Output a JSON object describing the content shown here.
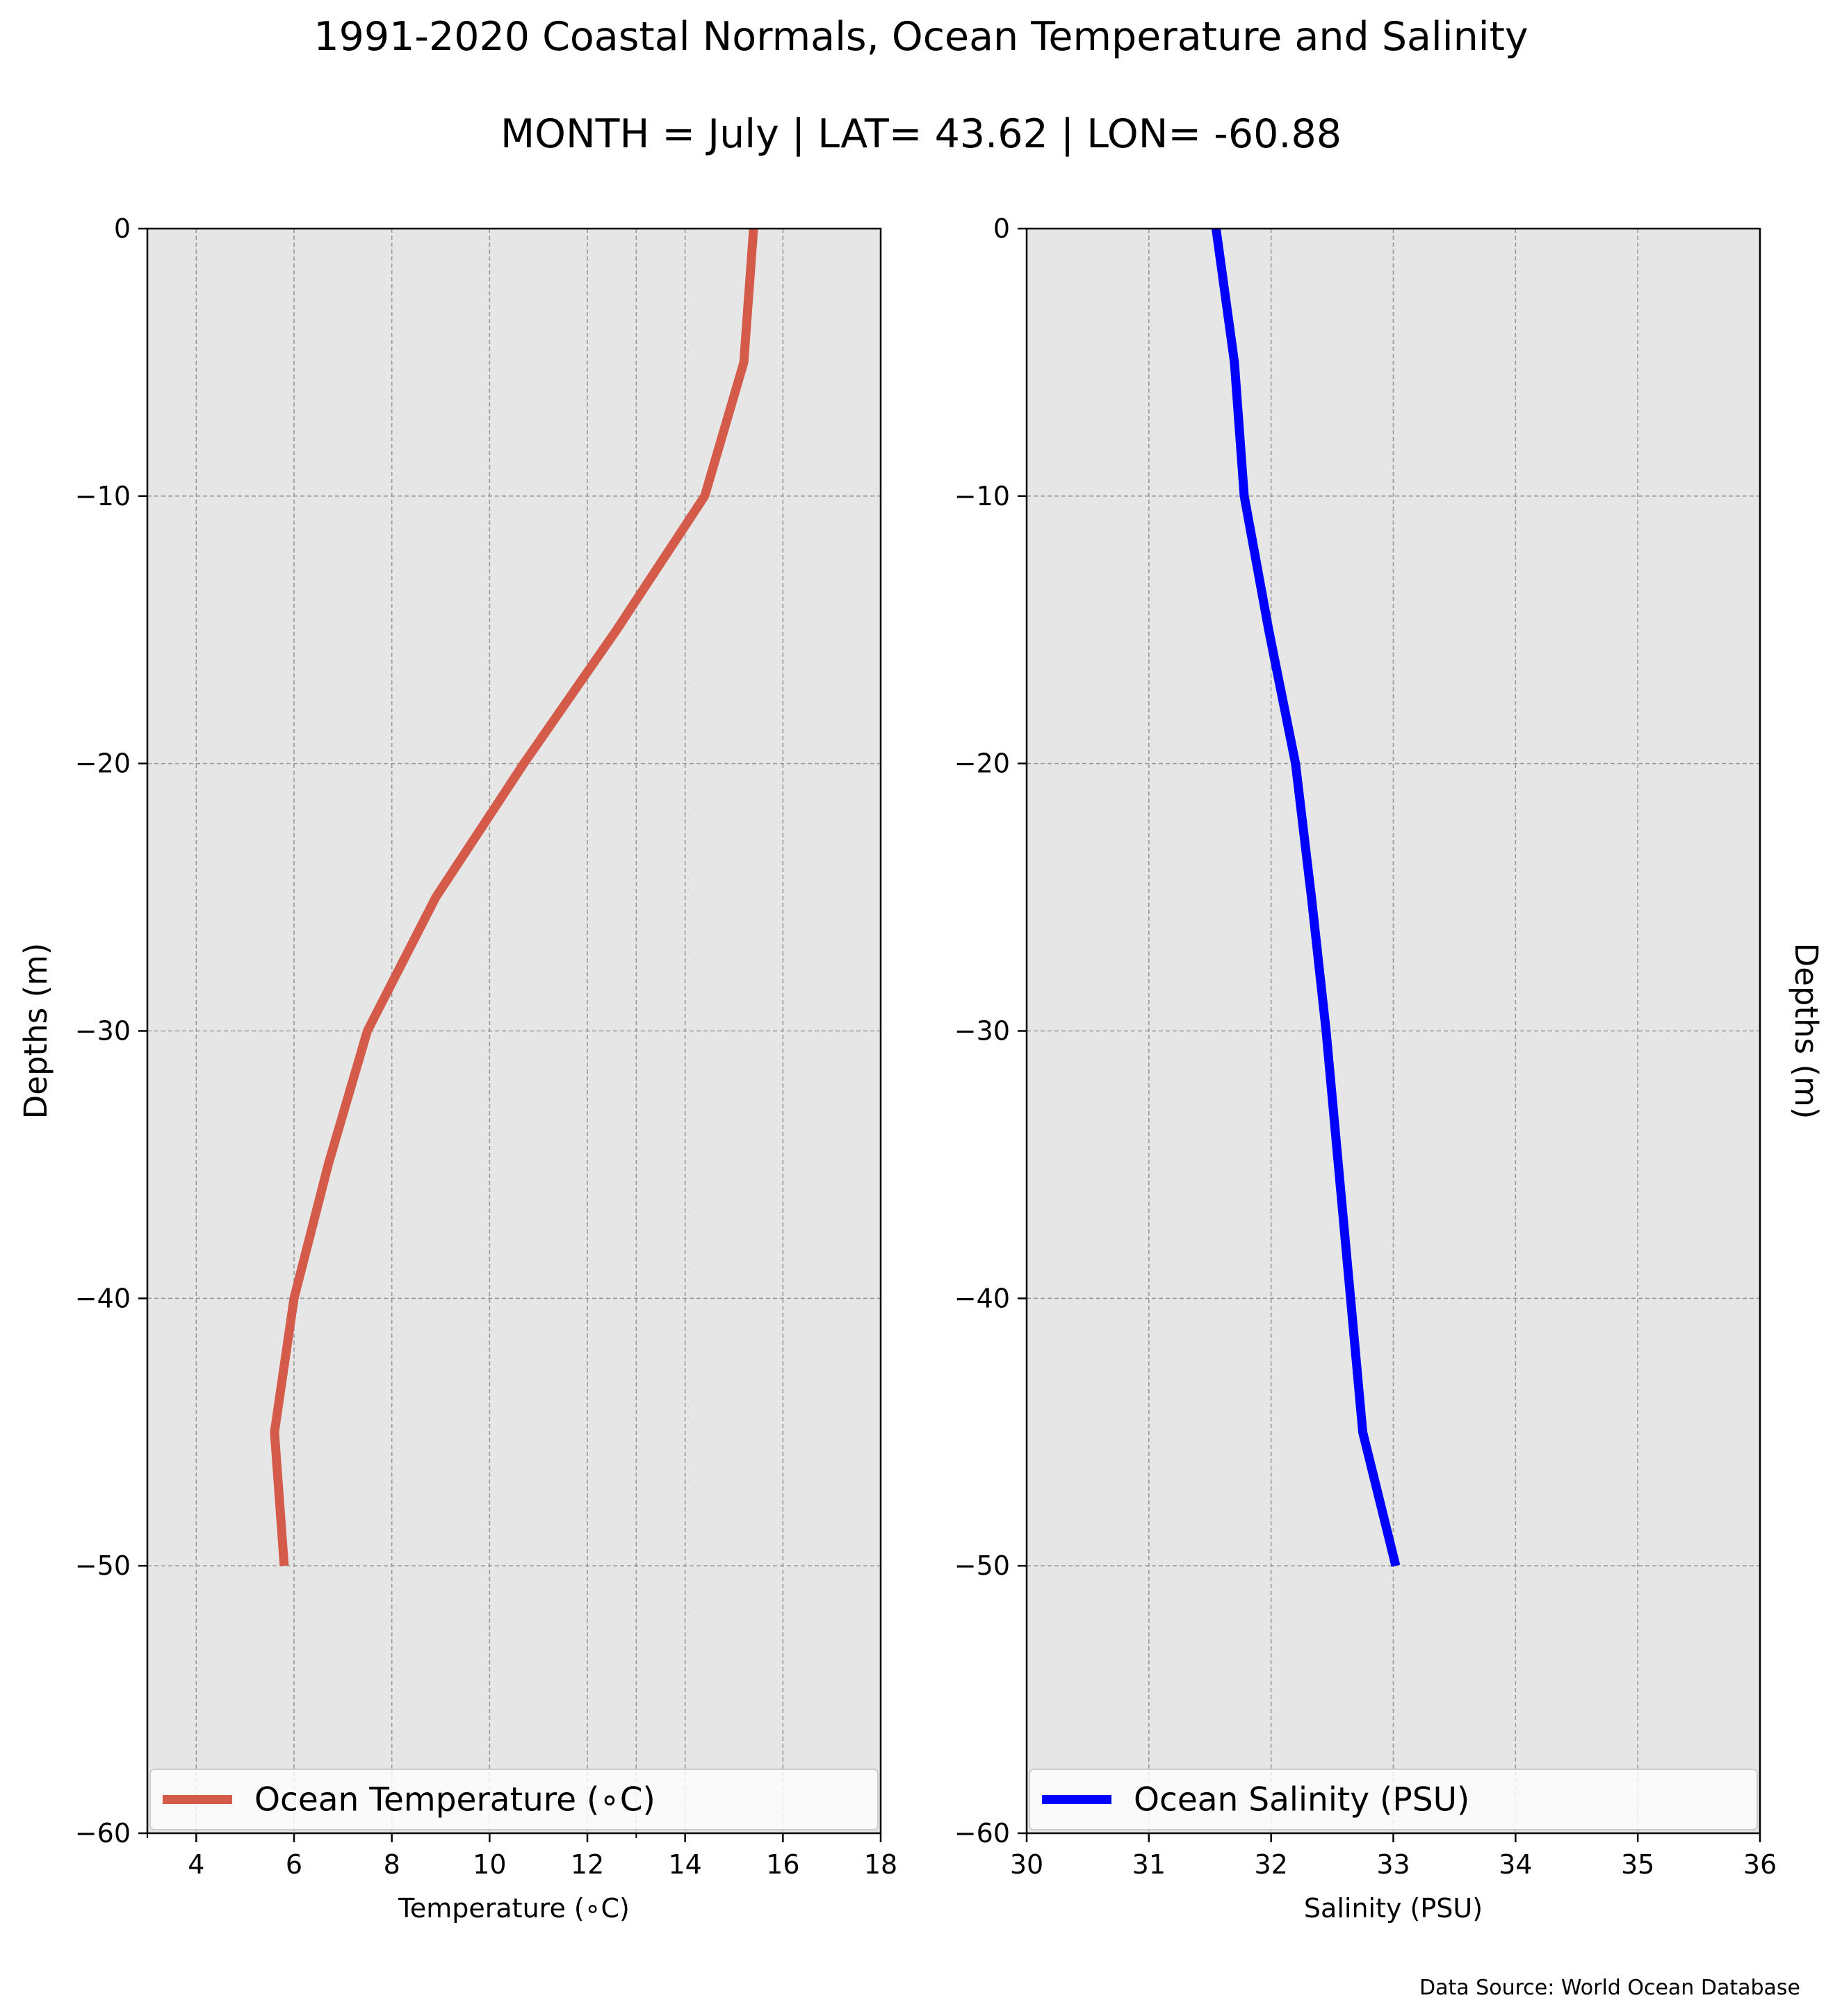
{
  "figure": {
    "title": "1991-2020 Coastal Normals, Ocean Temperature and Salinity",
    "subtitle": "MONTH = July | LAT= 43.62 | LON= -60.88",
    "source": "Data Source: World Ocean Database",
    "panel_background": "#e6e6e6",
    "grid_color": "#999999"
  },
  "chart_data": [
    {
      "type": "line",
      "xlabel": "Temperature ($^\\circ$C)",
      "xlabel_display": "Temperature (∘C)",
      "ylabel": "Depths (m)",
      "xlim": [
        3,
        18
      ],
      "ylim": [
        -60,
        0
      ],
      "xticks": [
        4,
        6,
        8,
        10,
        12,
        14,
        16,
        18
      ],
      "xticks_minor": [
        3,
        13
      ],
      "yticks": [
        0,
        -10,
        -20,
        -30,
        -40,
        -50,
        -60
      ],
      "grid": true,
      "legend_placement": "bottom",
      "ylabel_side": "left",
      "series": [
        {
          "name": "Ocean Temperature (∘C)",
          "color": "#d45b4a",
          "x": [
            15.4,
            15.2,
            14.4,
            12.6,
            10.7,
            8.9,
            7.5,
            6.7,
            6.0,
            5.6,
            5.8
          ],
          "y": [
            0,
            -5,
            -10,
            -15,
            -20,
            -25,
            -30,
            -35,
            -40,
            -45,
            -50
          ]
        }
      ]
    },
    {
      "type": "line",
      "xlabel": "Salinity (PSU)",
      "xlabel_display": "Salinity (PSU)",
      "ylabel": "Depths (m)",
      "xlim": [
        30,
        36
      ],
      "ylim": [
        -60,
        0
      ],
      "xticks": [
        30,
        31,
        32,
        33,
        34,
        35,
        36
      ],
      "xticks_minor": [],
      "yticks": [
        0,
        -10,
        -20,
        -30,
        -40,
        -50,
        -60
      ],
      "grid": true,
      "legend_placement": "bottom",
      "ylabel_side": "right",
      "series": [
        {
          "name": "Ocean Salinity (PSU)",
          "color": "#0000ff",
          "x": [
            31.55,
            31.7,
            31.78,
            31.98,
            32.2,
            32.33,
            32.45,
            32.55,
            32.65,
            32.75,
            33.02
          ],
          "y": [
            0,
            -5,
            -10,
            -15,
            -20,
            -25,
            -30,
            -35,
            -40,
            -45,
            -50
          ]
        }
      ]
    }
  ]
}
